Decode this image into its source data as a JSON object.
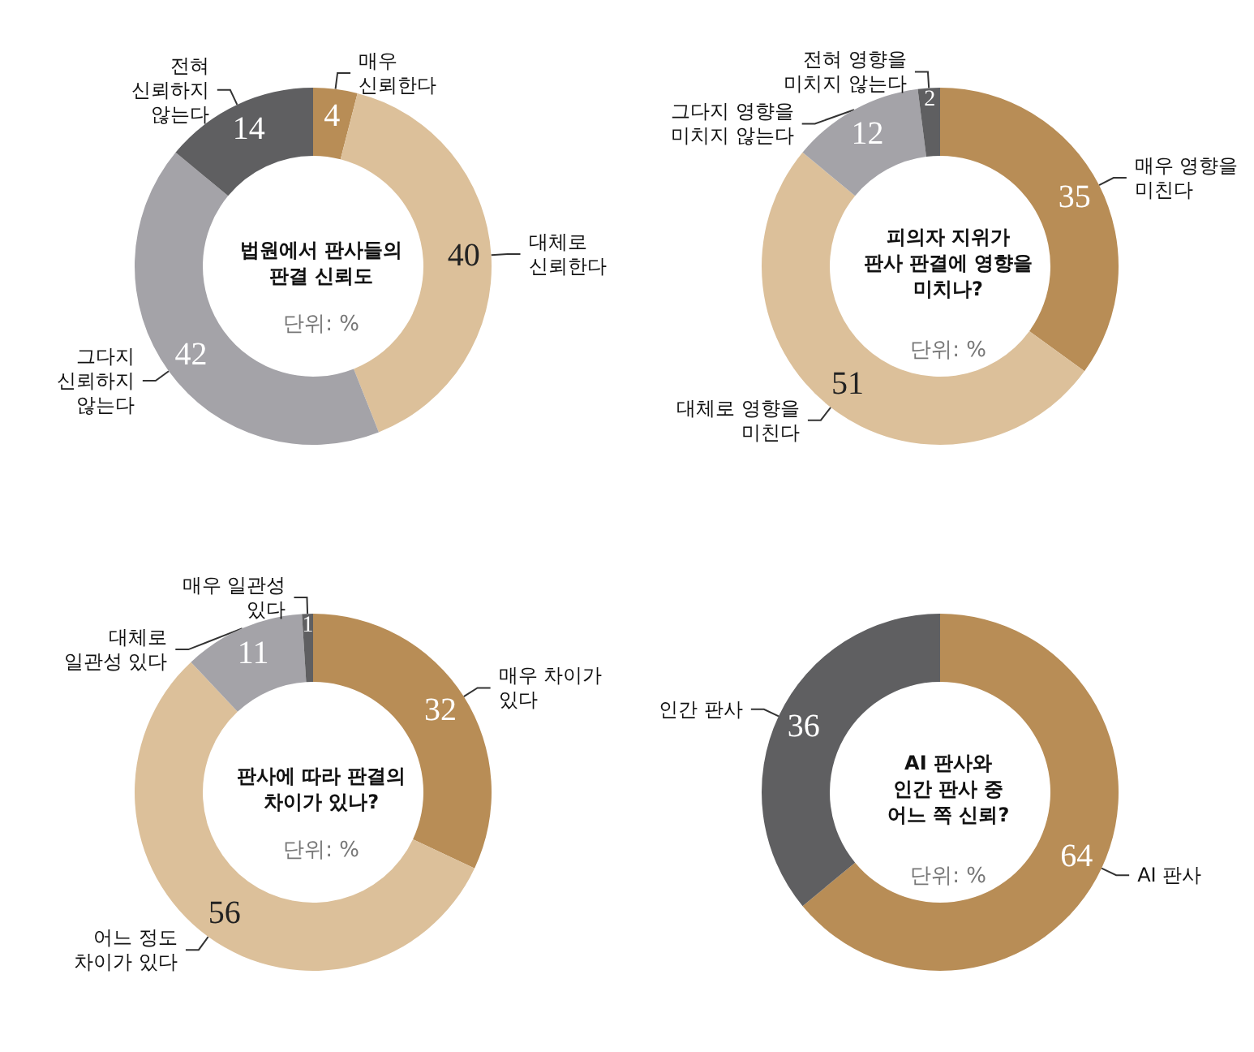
{
  "chart_data": [
    {
      "type": "donut",
      "title": "법원에서 판사들의\n판결 신뢰도",
      "subtitle": "단위: %",
      "categories": [
        "매우\n신뢰한다",
        "대체로\n신뢰한다",
        "그다지\n신뢰하지\n않는다",
        "전혀\n신뢰하지\n않는다"
      ],
      "values": [
        4,
        40,
        42,
        14
      ],
      "colors": [
        "#b88d56",
        "#dcc09a",
        "#a4a3a8",
        "#5f5f61"
      ],
      "data_labels": true
    },
    {
      "type": "donut",
      "title": "피의자 지위가\n판사 판결에 영향을\n미치나?",
      "subtitle": "단위: %",
      "categories": [
        "매우 영향을\n미친다",
        "대체로 영향을\n미친다",
        "그다지 영향을\n미치지 않는다",
        "전혀 영향을\n미치지 않는다"
      ],
      "values": [
        35,
        51,
        12,
        2
      ],
      "colors": [
        "#b88d56",
        "#dcc09a",
        "#a4a3a8",
        "#5f5f61"
      ],
      "data_labels": true
    },
    {
      "type": "donut",
      "title": "판사에 따라 판결의\n차이가 있나?",
      "subtitle": "단위: %",
      "categories": [
        "매우 차이가\n있다",
        "어느 정도\n차이가 있다",
        "대체로\n일관성 있다",
        "매우 일관성\n있다"
      ],
      "values": [
        32,
        56,
        11,
        1
      ],
      "colors": [
        "#b88d56",
        "#dcc09a",
        "#a4a3a8",
        "#5f5f61"
      ],
      "data_labels": true
    },
    {
      "type": "donut",
      "title": "AI 판사와\n인간 판사 중\n어느 쪽 신뢰?",
      "subtitle": "단위: %",
      "categories": [
        "AI 판사",
        "인간 판사"
      ],
      "values": [
        64,
        36
      ],
      "colors": [
        "#b88d56",
        "#5f5f61"
      ],
      "data_labels": true
    }
  ]
}
